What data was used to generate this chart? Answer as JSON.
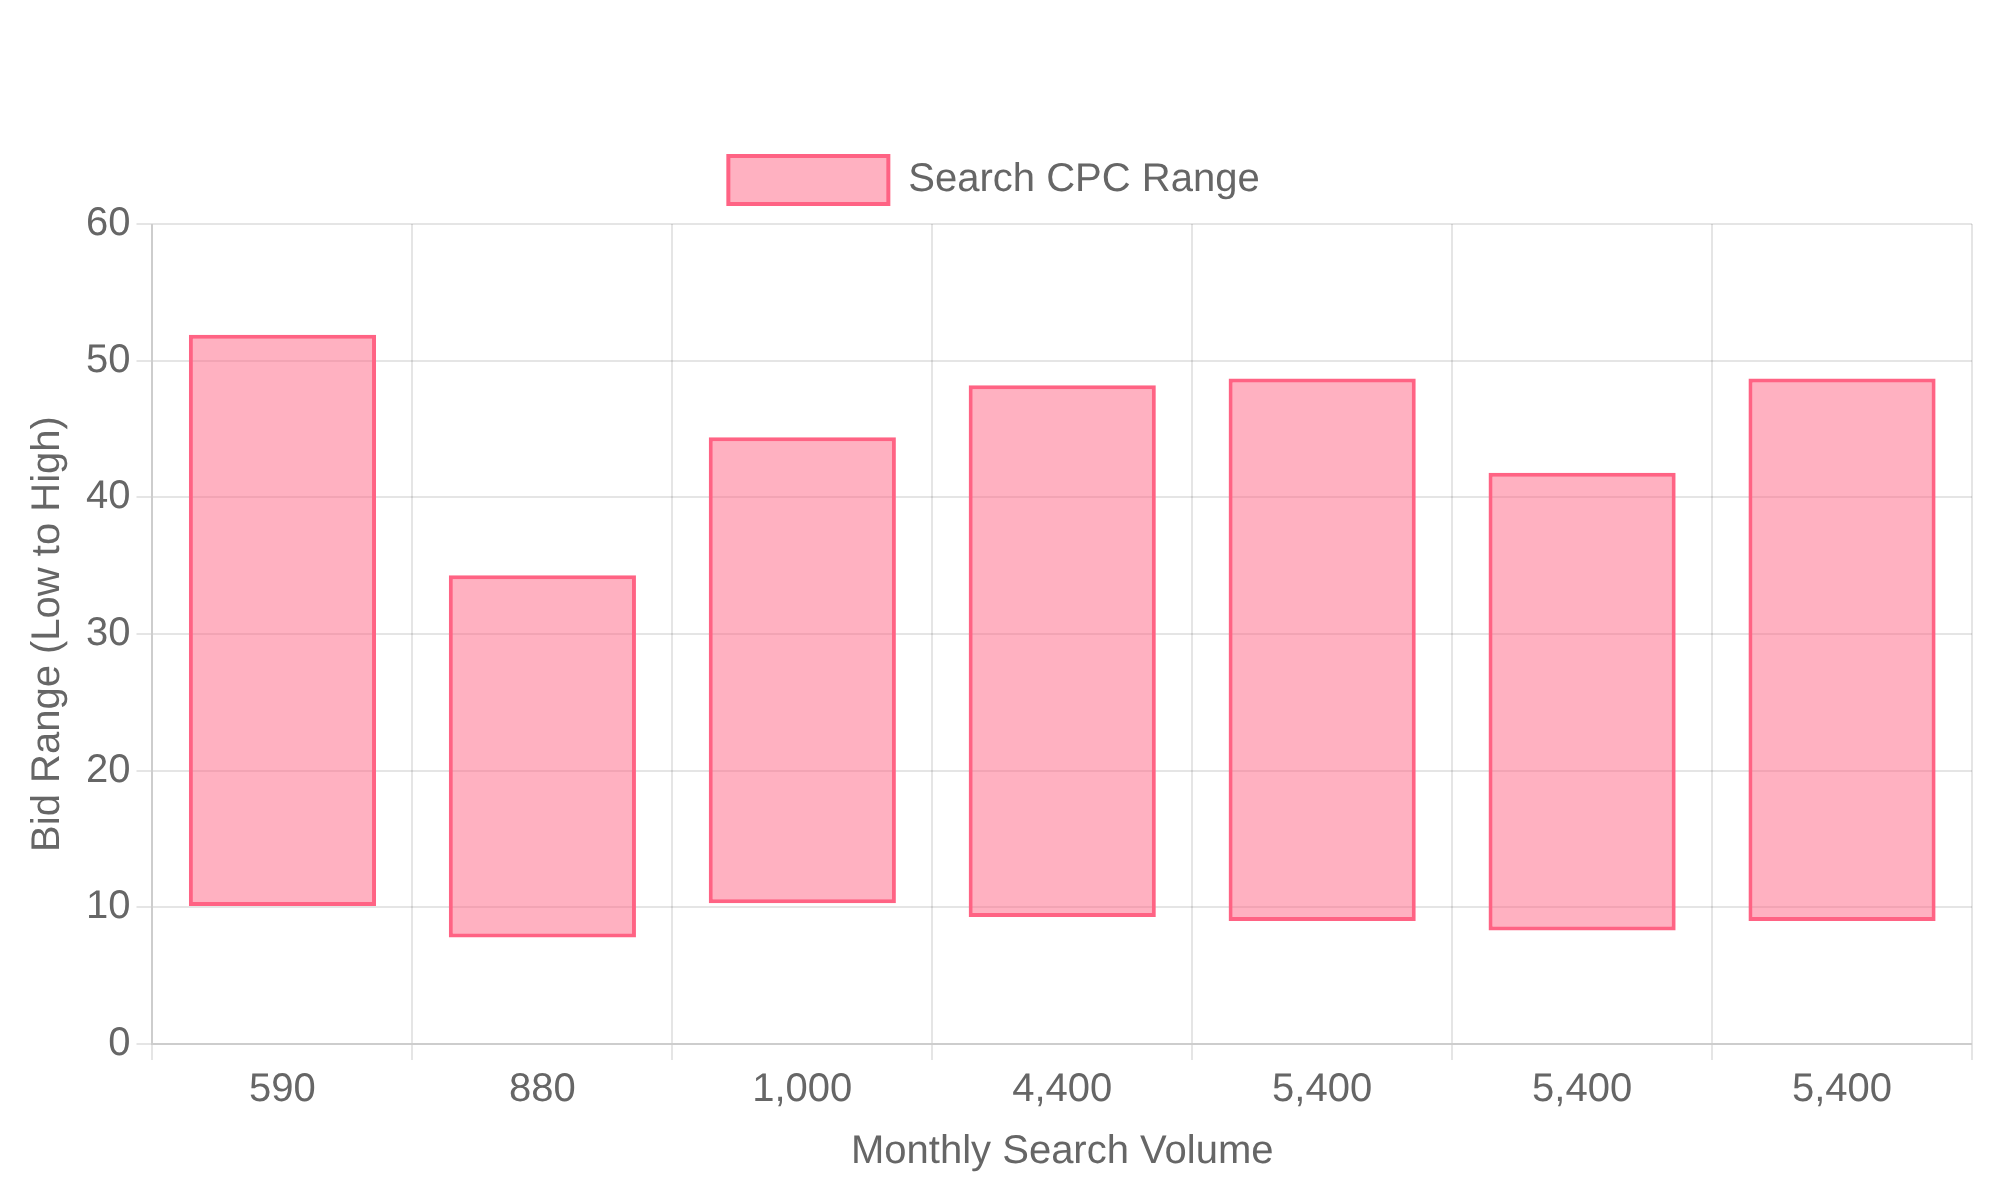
{
  "chart_data": {
    "type": "bar",
    "xlabel": "Monthly Search Volume",
    "ylabel": "Bid Range (Low to High)",
    "categories": [
      "590",
      "880",
      "1,000",
      "4,400",
      "5,400",
      "5,400",
      "5,400"
    ],
    "series": [
      {
        "name": "Search CPC Range",
        "color": "#ff6384",
        "values": [
          41.8,
          26.5,
          34.1,
          38.9,
          39.7,
          33.5,
          39.7
        ],
        "base": [
          10.1,
          7.8,
          10.3,
          9.3,
          9.0,
          8.3,
          9.0
        ]
      }
    ],
    "ylim": [
      0,
      60
    ],
    "yticks": [
      0,
      10,
      20,
      30,
      40,
      50,
      60
    ],
    "grid": true,
    "legend": "top"
  }
}
